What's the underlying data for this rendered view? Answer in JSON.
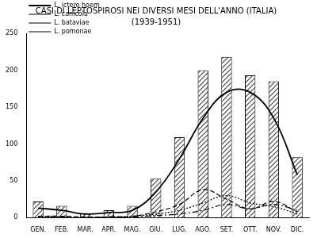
{
  "chart_data": {
    "type": "bar",
    "title": "CASI DI LEPTOSPIROSI NEI DIVERSI MESI DELL'ANNO (ITALIA)",
    "subtitle": "(1939-1951)",
    "categories": [
      "GEN.",
      "FEB.",
      "MAR.",
      "APR.",
      "MAG.",
      "GIU.",
      "LUG.",
      "AGO.",
      "SET.",
      "OTT.",
      "NOV.",
      "DIC."
    ],
    "series": [
      {
        "type": "bar",
        "color": "#444444",
        "values": [
          22,
          16,
          6,
          10,
          16,
          53,
          109,
          200,
          218,
          193,
          185,
          82
        ]
      },
      {
        "name": "L. ictero hoem",
        "type": "line",
        "color": "#000000",
        "line_style": "solid",
        "values": [
          13,
          10,
          5,
          7,
          10,
          35,
          80,
          135,
          170,
          170,
          135,
          58
        ]
      },
      {
        "name": "L. canicola",
        "type": "line",
        "color": "#000000",
        "line_style": "dashed",
        "values": [
          2,
          2,
          1,
          1,
          2,
          8,
          18,
          38,
          25,
          12,
          22,
          8
        ]
      },
      {
        "name": "L. bataviae",
        "type": "line",
        "color": "#000000",
        "line_style": "dotted",
        "values": [
          1,
          1,
          0,
          1,
          2,
          5,
          10,
          20,
          30,
          20,
          15,
          5
        ]
      },
      {
        "name": "L. pomonae",
        "type": "line",
        "color": "#000000",
        "line_style": "dashdot",
        "values": [
          2,
          1,
          0,
          1,
          1,
          3,
          5,
          10,
          18,
          12,
          18,
          10
        ]
      }
    ],
    "ylim": [
      0,
      250
    ],
    "yticks": [
      0,
      50,
      100,
      150,
      200,
      250
    ],
    "grid": false,
    "legend": "upper left"
  }
}
